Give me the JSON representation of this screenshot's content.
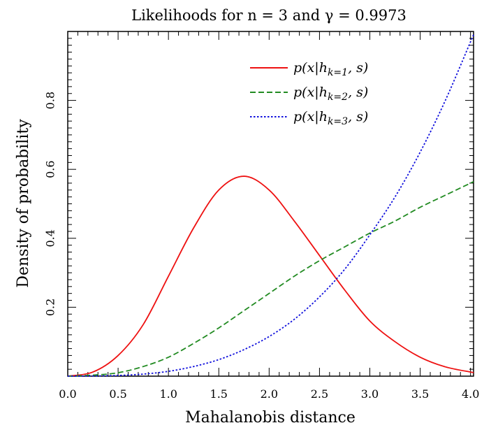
{
  "chart_data": {
    "type": "line",
    "title": "Likelihoods for n = 3 and γ = 0.9973",
    "xlabel": "Mahalanobis distance",
    "ylabel": "Density of probability",
    "xlim": [
      0.0,
      4.03
    ],
    "ylim": [
      0.0,
      1.0
    ],
    "x_ticks": [
      "0.0",
      "0.5",
      "1.0",
      "1.5",
      "2.0",
      "2.5",
      "3.0",
      "3.5",
      "4.0"
    ],
    "y_ticks": [
      "0.2",
      "0.4",
      "0.6",
      "0.8"
    ],
    "legend_position": "top-right",
    "grid": false,
    "series": [
      {
        "name": "p(x|h_{k=1}, s)",
        "color": "#ee1111",
        "dash": "solid",
        "x": [
          0.0,
          0.25,
          0.5,
          0.75,
          1.0,
          1.25,
          1.5,
          1.75,
          2.0,
          2.25,
          2.5,
          2.75,
          3.0,
          3.25,
          3.5,
          3.75,
          4.0,
          4.03
        ],
        "y": [
          0.0,
          0.012,
          0.06,
          0.15,
          0.29,
          0.43,
          0.54,
          0.58,
          0.54,
          0.45,
          0.35,
          0.25,
          0.16,
          0.1,
          0.055,
          0.027,
          0.012,
          0.011
        ]
      },
      {
        "name": "p(x|h_{k=2}, s)",
        "color": "#228b22",
        "dash": "dashed",
        "x": [
          0.0,
          0.25,
          0.5,
          0.75,
          1.0,
          1.25,
          1.5,
          1.75,
          2.0,
          2.25,
          2.5,
          2.75,
          3.0,
          3.25,
          3.5,
          3.75,
          4.0,
          4.03
        ],
        "y": [
          0.0,
          0.003,
          0.01,
          0.028,
          0.055,
          0.095,
          0.14,
          0.19,
          0.24,
          0.29,
          0.335,
          0.375,
          0.415,
          0.45,
          0.49,
          0.525,
          0.56,
          0.564
        ]
      },
      {
        "name": "p(x|h_{k=3}, s)",
        "color": "#1111dd",
        "dash": "dotted",
        "x": [
          0.0,
          0.25,
          0.5,
          0.75,
          1.0,
          1.25,
          1.5,
          1.75,
          2.0,
          2.25,
          2.5,
          2.75,
          3.0,
          3.25,
          3.5,
          3.75,
          4.0,
          4.03
        ],
        "y": [
          0.0,
          0.0005,
          0.002,
          0.006,
          0.014,
          0.028,
          0.048,
          0.077,
          0.115,
          0.165,
          0.23,
          0.31,
          0.41,
          0.52,
          0.65,
          0.8,
          0.97,
          0.99
        ]
      }
    ]
  }
}
